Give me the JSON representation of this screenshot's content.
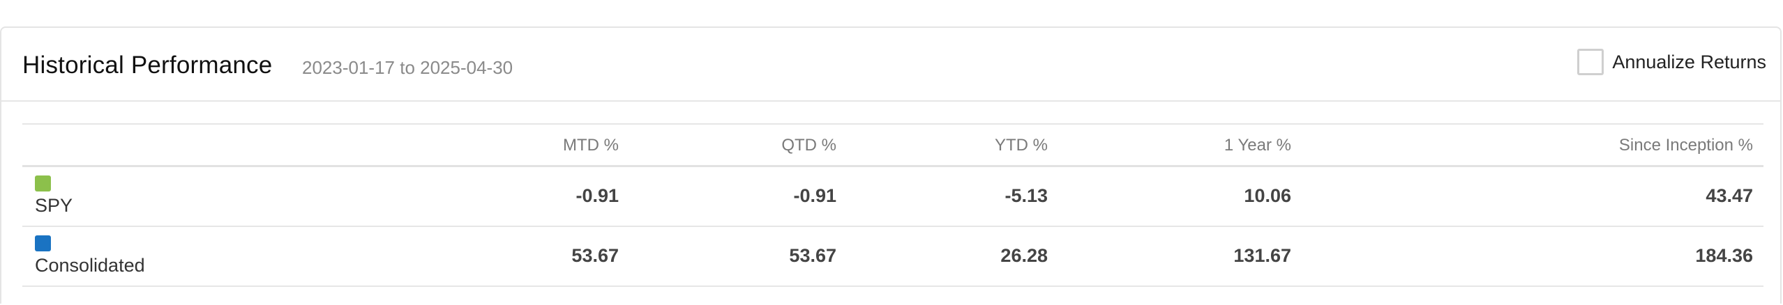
{
  "header": {
    "title": "Historical Performance",
    "date_range": "2023-01-17 to 2025-04-30",
    "annualize_label": "Annualize Returns",
    "annualize_checked": false
  },
  "table": {
    "columns": [
      "",
      "MTD %",
      "QTD %",
      "YTD %",
      "1 Year %",
      "Since Inception %"
    ],
    "rows": [
      {
        "name": "SPY",
        "color": "#8cc04b",
        "mtd": "-0.91",
        "qtd": "-0.91",
        "ytd": "-5.13",
        "one_year": "10.06",
        "since_inception": "43.47"
      },
      {
        "name": "Consolidated",
        "color": "#1a73c2",
        "mtd": "53.67",
        "qtd": "53.67",
        "ytd": "26.28",
        "one_year": "131.67",
        "since_inception": "184.36"
      }
    ]
  }
}
